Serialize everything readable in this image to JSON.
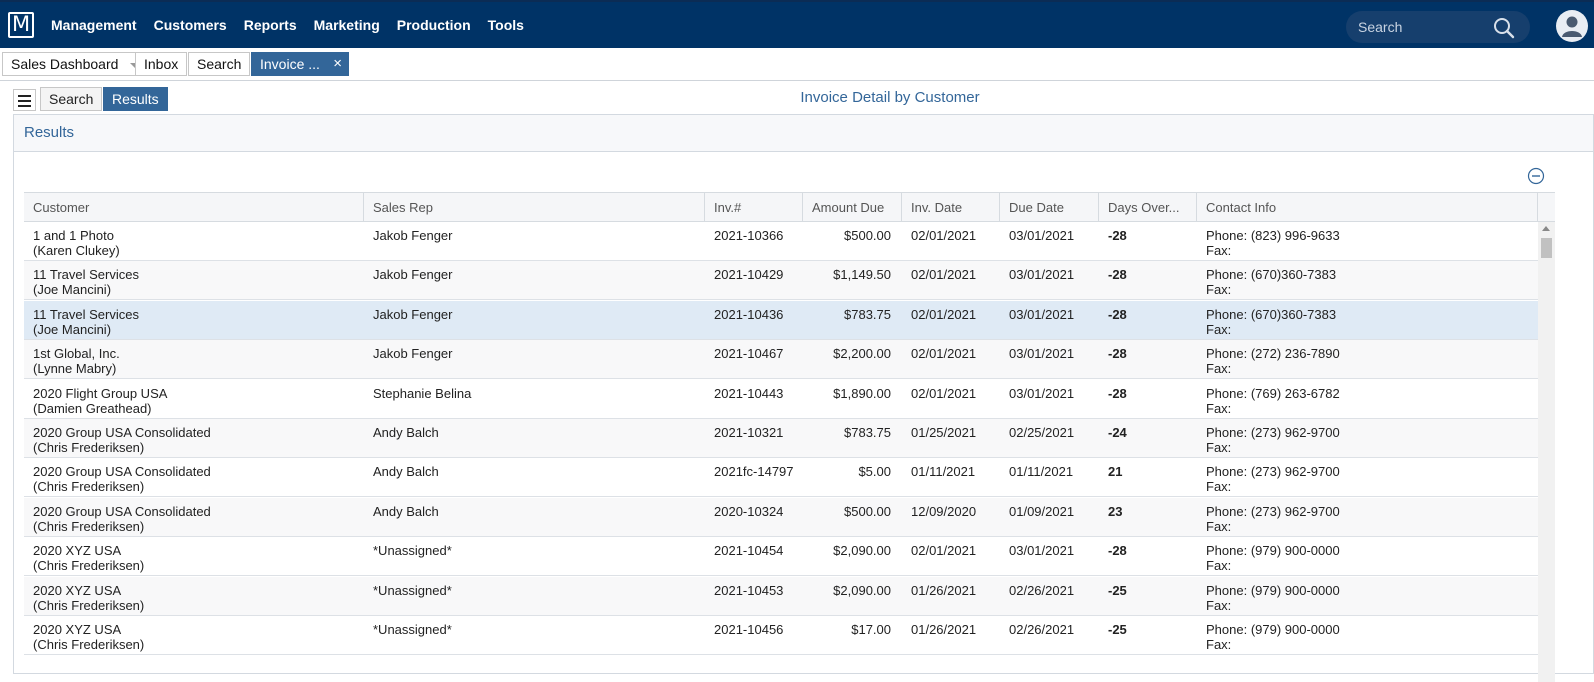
{
  "topbar": {
    "logo": "M",
    "nav": [
      "Management",
      "Customers",
      "Reports",
      "Marketing",
      "Production",
      "Tools"
    ],
    "search_placeholder": "Search"
  },
  "tabs": {
    "dashboard": "Sales Dashboard",
    "inbox": "Inbox",
    "search": "Search",
    "invoice": "Invoice ...",
    "close": "×"
  },
  "toolbar": {
    "search_label": "Search",
    "results_label": "Results",
    "page_title": "Invoice Detail by Customer"
  },
  "panel": {
    "title": "Results"
  },
  "table": {
    "columns": [
      "Customer",
      "Sales Rep",
      "Inv.#",
      "Amount Due",
      "Inv. Date",
      "Due Date",
      "Days Over...",
      "Contact Info"
    ],
    "rows": [
      {
        "customer": "1 and 1 Photo",
        "contact": "(Karen Clukey)",
        "rep": "Jakob Fenger",
        "inv": "2021-10366",
        "amount": "$500.00",
        "inv_date": "02/01/2021",
        "due_date": "03/01/2021",
        "days": "-28",
        "phone": "Phone: (823) 996-9633",
        "fax": "Fax:"
      },
      {
        "customer": "11 Travel Services",
        "contact": "(Joe Mancini)",
        "rep": "Jakob Fenger",
        "inv": "2021-10429",
        "amount": "$1,149.50",
        "inv_date": "02/01/2021",
        "due_date": "03/01/2021",
        "days": "-28",
        "phone": "Phone: (670)360-7383",
        "fax": "Fax:"
      },
      {
        "customer": "11 Travel Services",
        "contact": "(Joe Mancini)",
        "rep": "Jakob Fenger",
        "inv": "2021-10436",
        "amount": "$783.75",
        "inv_date": "02/01/2021",
        "due_date": "03/01/2021",
        "days": "-28",
        "phone": "Phone: (670)360-7383",
        "fax": "Fax:"
      },
      {
        "customer": "1st Global, Inc.",
        "contact": "(Lynne Mabry)",
        "rep": "Jakob Fenger",
        "inv": "2021-10467",
        "amount": "$2,200.00",
        "inv_date": "02/01/2021",
        "due_date": "03/01/2021",
        "days": "-28",
        "phone": "Phone: (272) 236-7890",
        "fax": "Fax:"
      },
      {
        "customer": "2020 Flight Group USA",
        "contact": "(Damien Greathead)",
        "rep": "Stephanie Belina",
        "inv": "2021-10443",
        "amount": "$1,890.00",
        "inv_date": "02/01/2021",
        "due_date": "03/01/2021",
        "days": "-28",
        "phone": "Phone: (769) 263-6782",
        "fax": "Fax:"
      },
      {
        "customer": "2020 Group USA Consolidated",
        "contact": "(Chris Frederiksen)",
        "rep": "Andy Balch",
        "inv": "2021-10321",
        "amount": "$783.75",
        "inv_date": "01/25/2021",
        "due_date": "02/25/2021",
        "days": "-24",
        "phone": "Phone: (273) 962-9700",
        "fax": "Fax:"
      },
      {
        "customer": "2020 Group USA Consolidated",
        "contact": "(Chris Frederiksen)",
        "rep": "Andy Balch",
        "inv": "2021fc-14797",
        "amount": "$5.00",
        "inv_date": "01/11/2021",
        "due_date": "01/11/2021",
        "days": "21",
        "phone": "Phone: (273) 962-9700",
        "fax": "Fax:"
      },
      {
        "customer": "2020 Group USA Consolidated",
        "contact": "(Chris Frederiksen)",
        "rep": "Andy Balch",
        "inv": "2020-10324",
        "amount": "$500.00",
        "inv_date": "12/09/2020",
        "due_date": "01/09/2021",
        "days": "23",
        "phone": "Phone: (273) 962-9700",
        "fax": "Fax:"
      },
      {
        "customer": "2020 XYZ USA",
        "contact": "(Chris Frederiksen)",
        "rep": "*Unassigned*",
        "inv": "2021-10454",
        "amount": "$2,090.00",
        "inv_date": "02/01/2021",
        "due_date": "03/01/2021",
        "days": "-28",
        "phone": "Phone: (979) 900-0000",
        "fax": "Fax:"
      },
      {
        "customer": "2020 XYZ USA",
        "contact": "(Chris Frederiksen)",
        "rep": "*Unassigned*",
        "inv": "2021-10453",
        "amount": "$2,090.00",
        "inv_date": "01/26/2021",
        "due_date": "02/26/2021",
        "days": "-25",
        "phone": "Phone: (979) 900-0000",
        "fax": "Fax:"
      },
      {
        "customer": "2020 XYZ USA",
        "contact": "(Chris Frederiksen)",
        "rep": "*Unassigned*",
        "inv": "2021-10456",
        "amount": "$17.00",
        "inv_date": "01/26/2021",
        "due_date": "02/26/2021",
        "days": "-25",
        "phone": "Phone: (979) 900-0000",
        "fax": "Fax:"
      }
    ]
  }
}
